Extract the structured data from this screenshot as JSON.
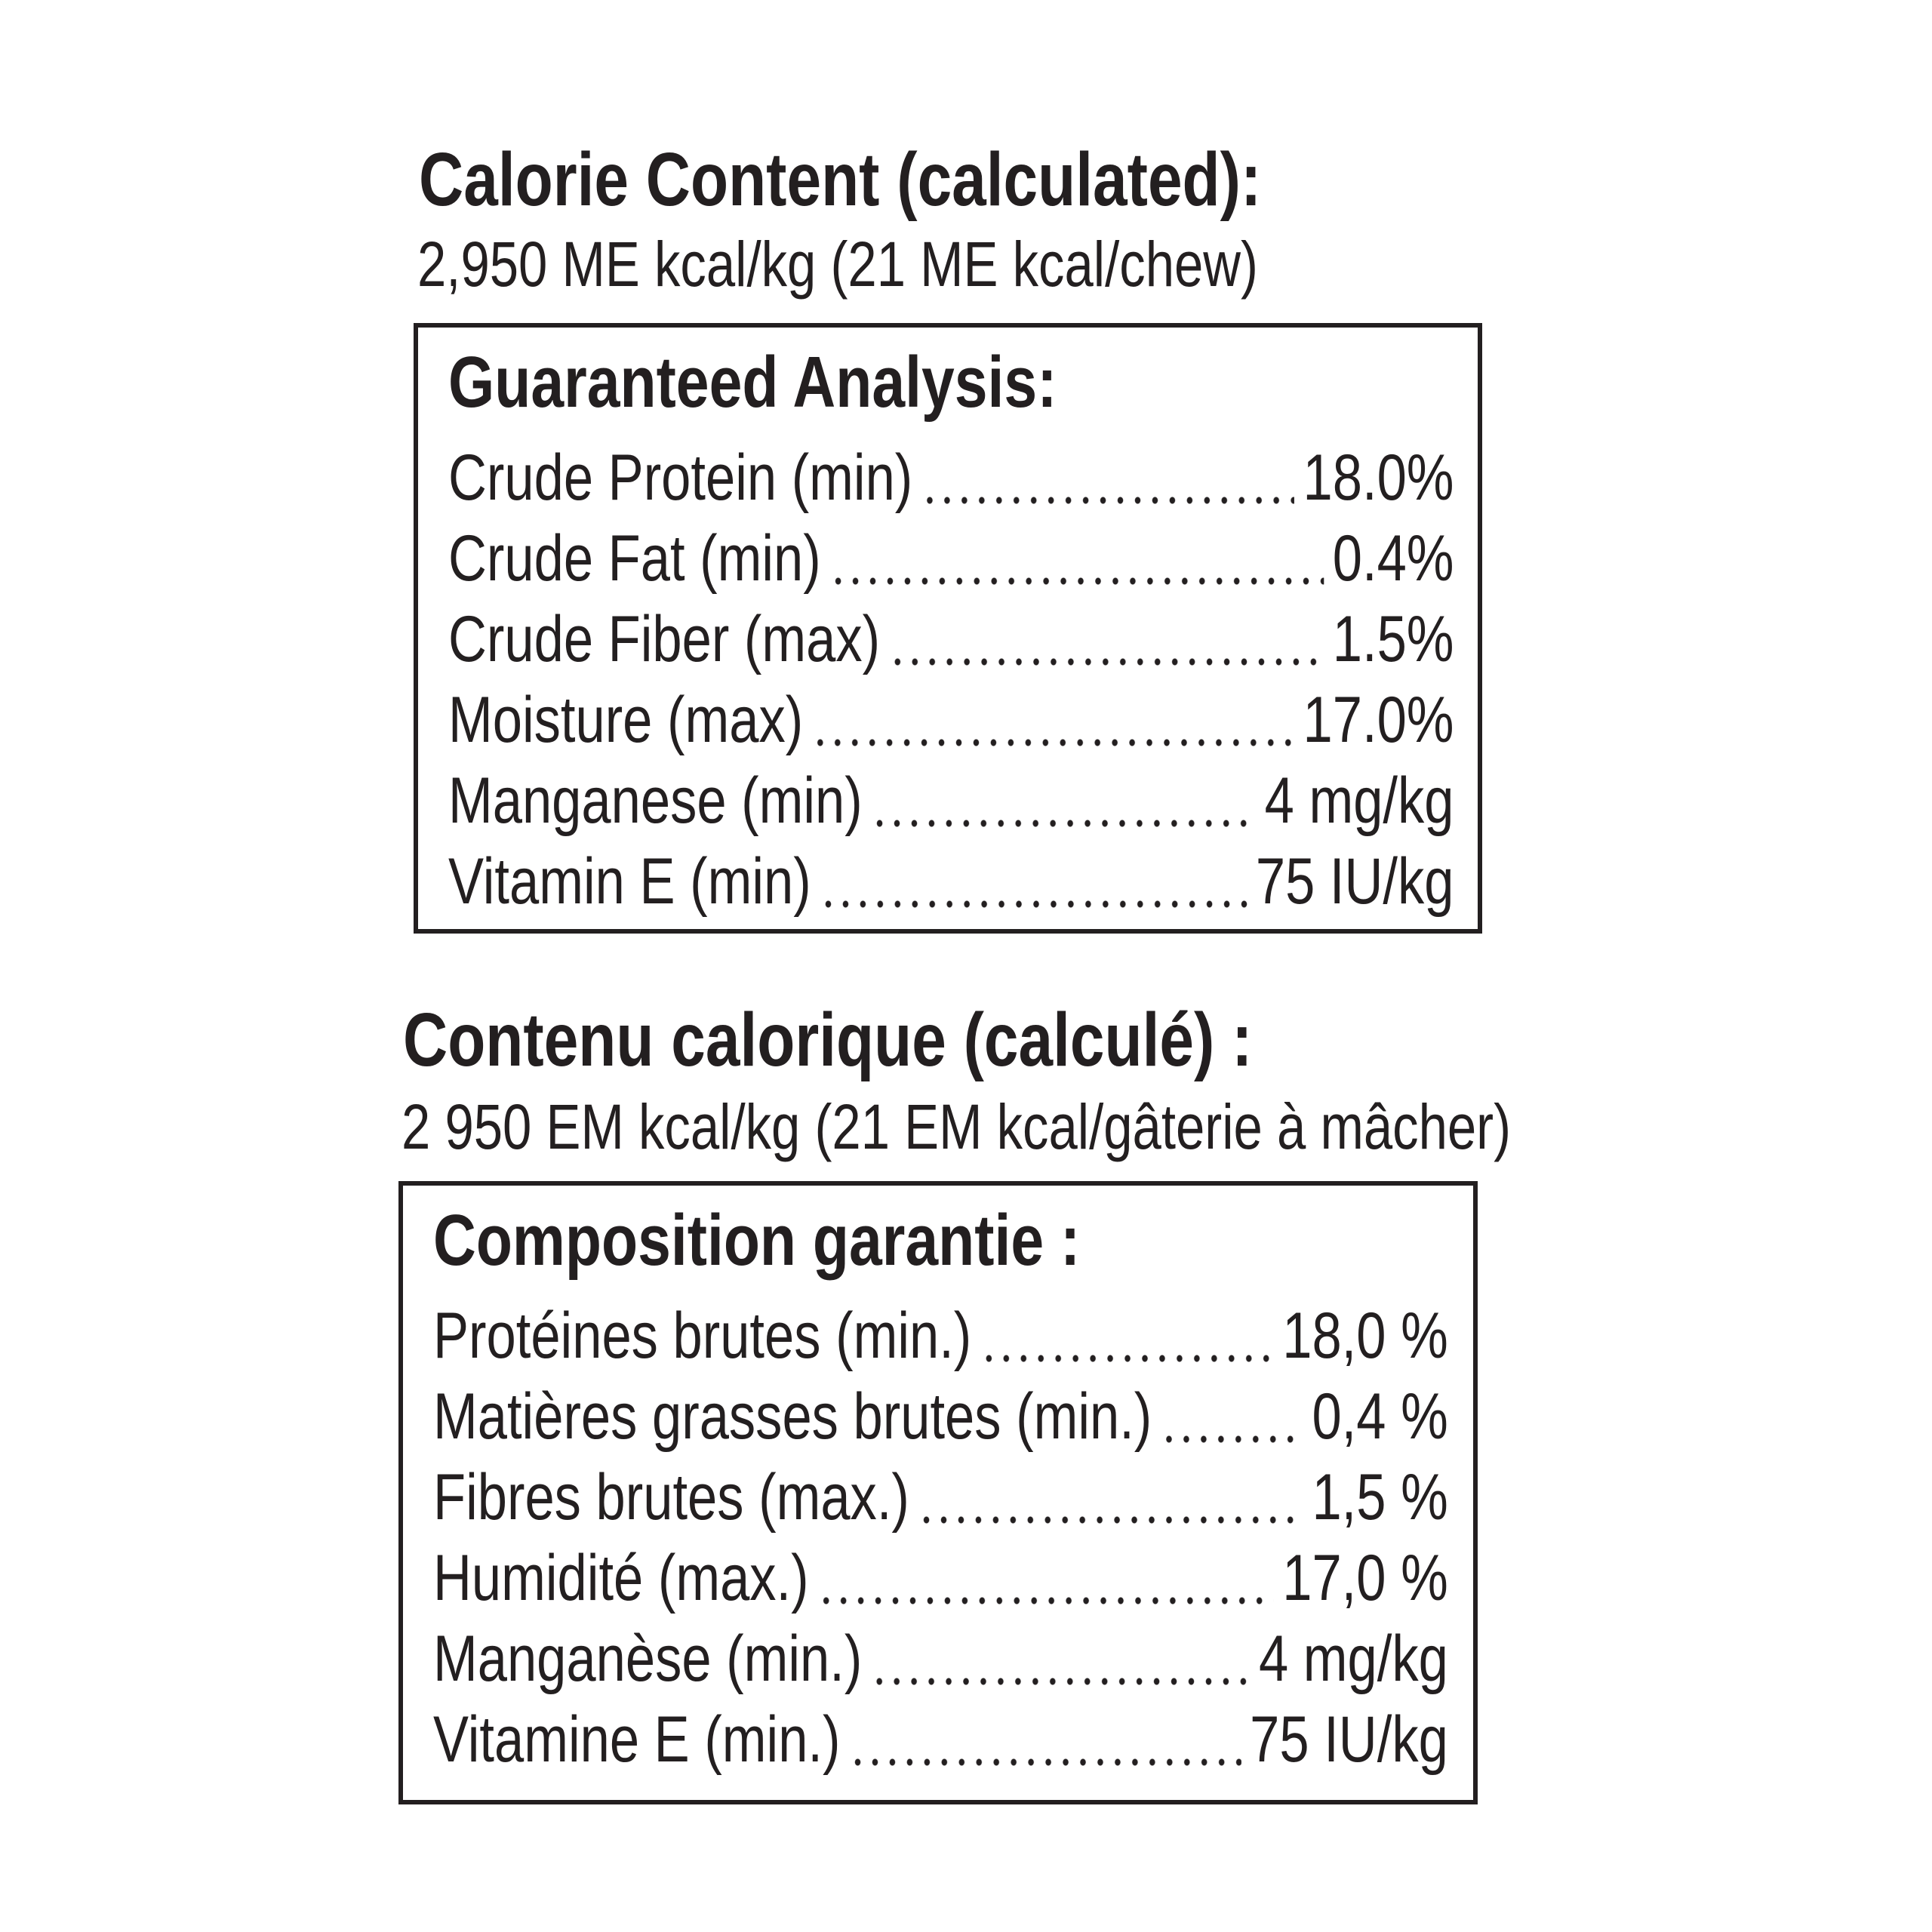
{
  "english": {
    "calorie_title": "Calorie Content (calculated):",
    "calorie_value": "2,950 ME kcal/kg (21 ME kcal/chew)",
    "analysis": {
      "title": "Guaranteed Analysis:",
      "rows": [
        {
          "label": "Crude Protein (min)",
          "value": "18.0%"
        },
        {
          "label": "Crude Fat (min)",
          "value": "0.4%"
        },
        {
          "label": "Crude Fiber (max)",
          "value": "1.5%"
        },
        {
          "label": "Moisture (max)",
          "value": "17.0%"
        },
        {
          "label": "Manganese (min)",
          "value": "4 mg/kg"
        },
        {
          "label": "Vitamin E (min)",
          "value": "75 IU/kg"
        }
      ]
    }
  },
  "french": {
    "calorie_title": "Contenu calorique (calculé) :",
    "calorie_value": "2 950 EM kcal/kg (21 EM kcal/gâterie à mâcher)",
    "analysis": {
      "title": "Composition garantie :",
      "rows": [
        {
          "label": "Protéines brutes (min.)",
          "value": "18,0 %"
        },
        {
          "label": "Matières grasses brutes (min.)",
          "value": "0,4 %"
        },
        {
          "label": "Fibres brutes (max.)",
          "value": "1,5 %"
        },
        {
          "label": "Humidité (max.)",
          "value": "17,0 %"
        },
        {
          "label": "Manganèse (min.)",
          "value": "4 mg/kg"
        },
        {
          "label": "Vitamine E (min.)",
          "value": "75 IU/kg"
        }
      ]
    }
  }
}
